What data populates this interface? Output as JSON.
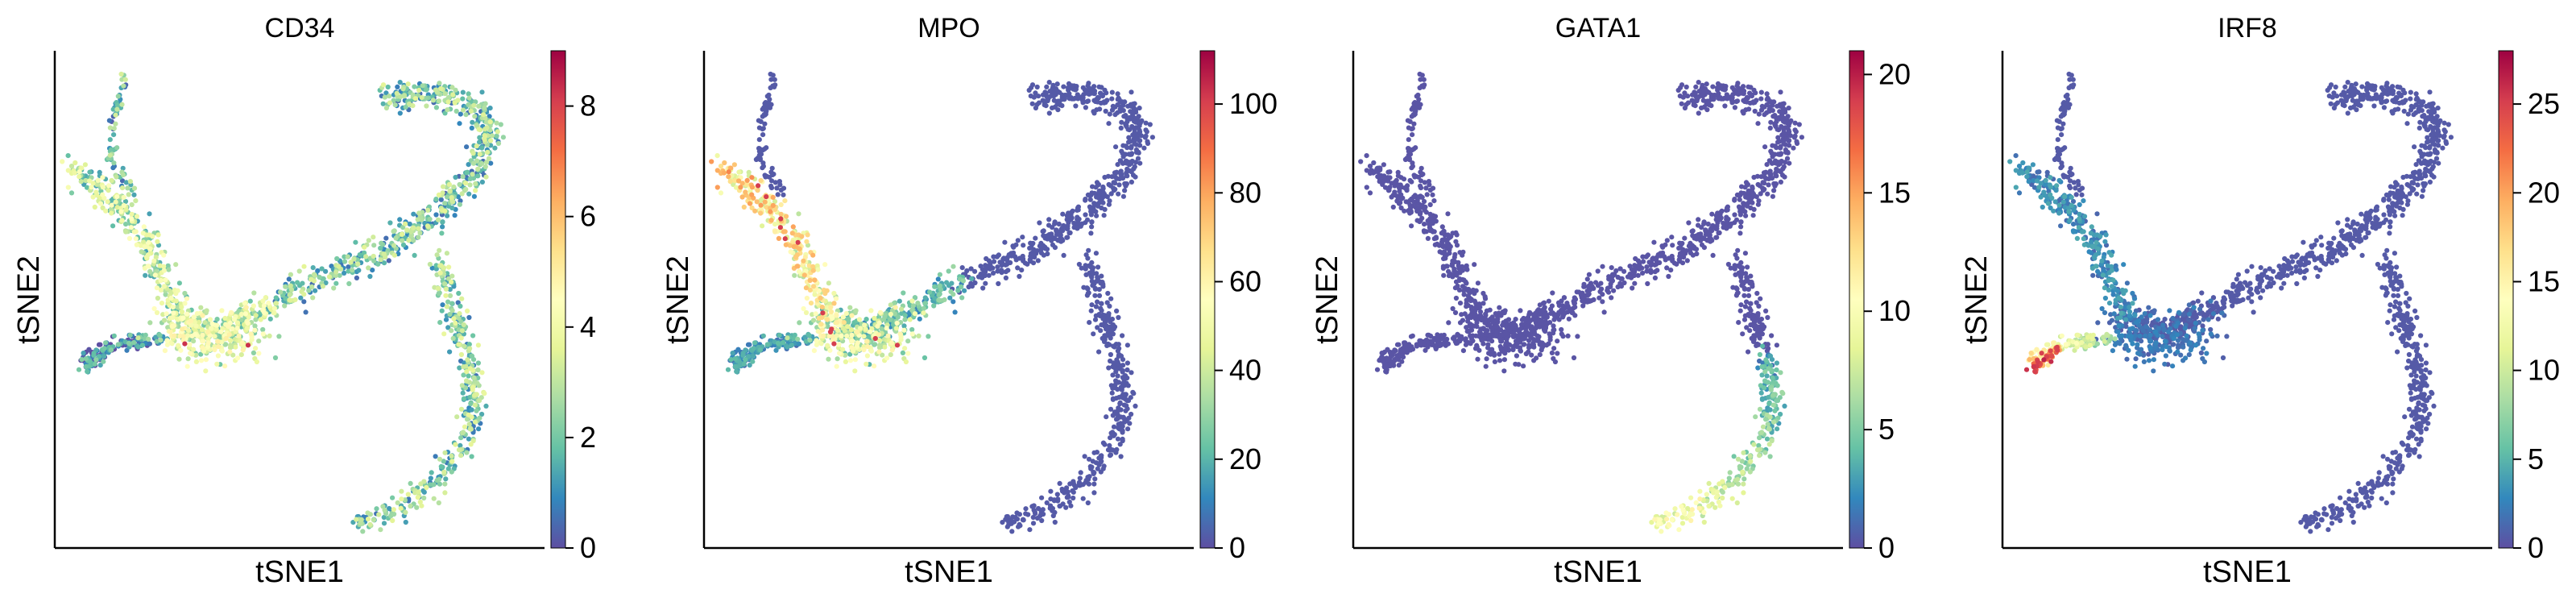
{
  "chart_data": [
    {
      "type": "scatter",
      "title": "CD34",
      "xlabel": "tSNE1",
      "ylabel": "tSNE2",
      "colorbar": {
        "min": 0,
        "max": 9,
        "ticks": [
          "0",
          "2",
          "4",
          "6",
          "8"
        ]
      },
      "expression_pattern": "moderate-broad"
    },
    {
      "type": "scatter",
      "title": "MPO",
      "xlabel": "tSNE1",
      "ylabel": "tSNE2",
      "colorbar": {
        "min": 0,
        "max": 112,
        "ticks": [
          "0",
          "20",
          "40",
          "60",
          "80",
          "100"
        ]
      },
      "expression_pattern": "left-arm-high"
    },
    {
      "type": "scatter",
      "title": "GATA1",
      "xlabel": "tSNE1",
      "ylabel": "tSNE2",
      "colorbar": {
        "min": 0,
        "max": 21,
        "ticks": [
          "0",
          "5",
          "10",
          "15",
          "20"
        ]
      },
      "expression_pattern": "lower-right-arm"
    },
    {
      "type": "scatter",
      "title": "IRF8",
      "xlabel": "tSNE1",
      "ylabel": "tSNE2",
      "colorbar": {
        "min": 0,
        "max": 28,
        "ticks": [
          "0",
          "5",
          "10",
          "15",
          "20",
          "25"
        ]
      },
      "expression_pattern": "left-hotspot"
    }
  ],
  "colormap": "Spectral_r",
  "colors": [
    "#5e4fa2",
    "#3288bd",
    "#66c2a5",
    "#abdda4",
    "#e6f598",
    "#ffffbf",
    "#fee08b",
    "#fdae61",
    "#f46d43",
    "#d53e4f",
    "#9e0142"
  ]
}
